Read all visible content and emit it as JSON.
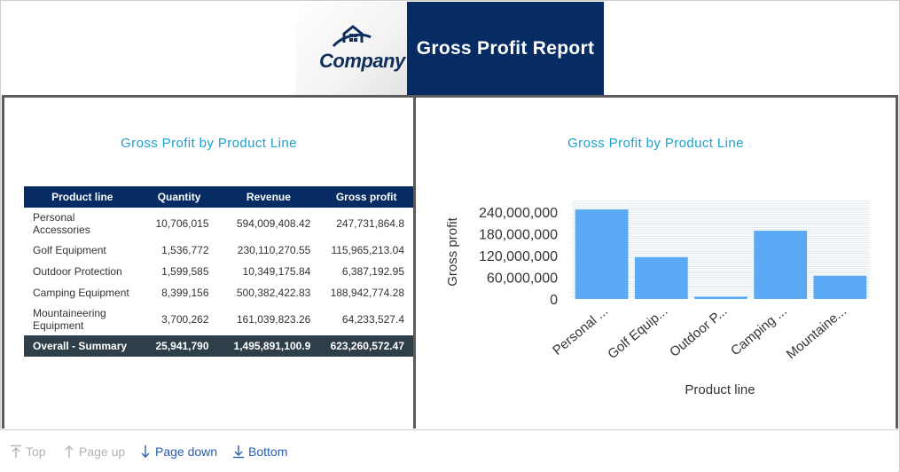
{
  "header": {
    "logo_text": "Company",
    "report_title": "Gross Profit Report"
  },
  "left_panel": {
    "title": "Gross Profit by Product Line",
    "table": {
      "headers": [
        "Product line",
        "Quantity",
        "Revenue",
        "Gross profit"
      ],
      "rows": [
        {
          "label": "Personal Accessories",
          "quantity": "10,706,015",
          "revenue": "594,009,408.42",
          "gross_profit": "247,731,864.8"
        },
        {
          "label": "Golf Equipment",
          "quantity": "1,536,772",
          "revenue": "230,110,270.55",
          "gross_profit": "115,965,213.04"
        },
        {
          "label": "Outdoor Protection",
          "quantity": "1,599,585",
          "revenue": "10,349,175.84",
          "gross_profit": "6,387,192.95"
        },
        {
          "label": "Camping Equipment",
          "quantity": "8,399,156",
          "revenue": "500,382,422.83",
          "gross_profit": "188,942,774.28"
        },
        {
          "label": "Mountaineering Equipment",
          "quantity": "3,700,262",
          "revenue": "161,039,823.26",
          "gross_profit": "64,233,527.4"
        }
      ],
      "summary": {
        "label": "Overall - Summary",
        "quantity": "25,941,790",
        "revenue": "1,495,891,100.9",
        "gross_profit": "623,260,572.47"
      }
    }
  },
  "right_panel": {
    "title": "Gross Profit by Product Line"
  },
  "chart_data": {
    "type": "bar",
    "categories": [
      "Personal ...",
      "Golf Equip...",
      "Outdoor P...",
      "Camping ...",
      "Mountaine..."
    ],
    "values": [
      247731864.8,
      115965213.04,
      6387192.95,
      188942774.28,
      64233527.4
    ],
    "xlabel": "Product line",
    "ylabel": "Gross profit",
    "ylim": [
      0,
      270000000
    ],
    "yticks": [
      0,
      60000000,
      120000000,
      180000000,
      240000000
    ],
    "ytick_labels": [
      "0",
      "60,000,000",
      "120,000,000",
      "180,000,000",
      "240,000,000"
    ],
    "bar_color": "#5aa9f5"
  },
  "footer": {
    "top_label": "Top",
    "page_up_label": "Page up",
    "page_down_label": "Page down",
    "bottom_label": "Bottom"
  }
}
